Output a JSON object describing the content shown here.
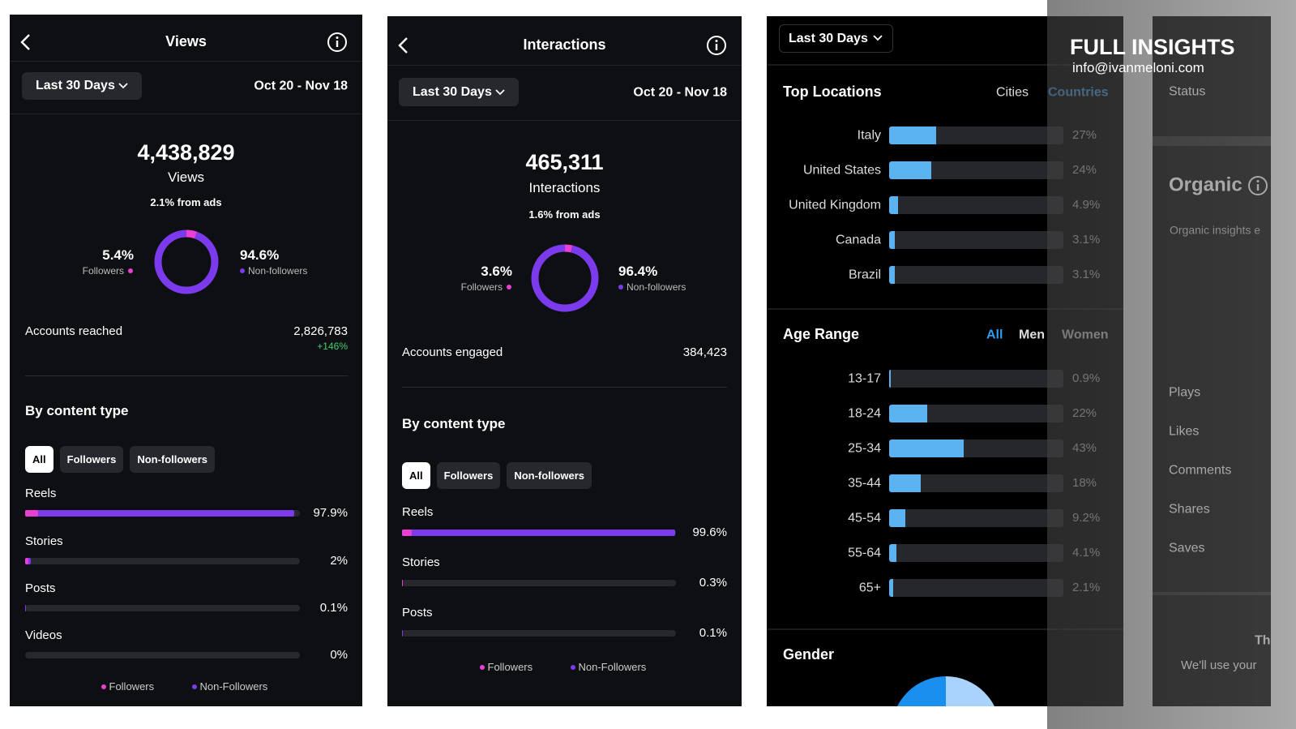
{
  "views": {
    "title": "Views",
    "period": "Last 30 Days",
    "dates": "Oct 20 - Nov 18",
    "total": "4,438,829",
    "total_label": "Views",
    "ads": "2.1% from ads",
    "followers": {
      "value": 5.4,
      "label": "5.4%",
      "name": "Followers"
    },
    "non_followers": {
      "value": 94.6,
      "label": "94.6%",
      "name": "Non-followers"
    },
    "metric": {
      "name": "Accounts reached",
      "value": "2,826,783",
      "change": "+146%"
    },
    "section": "By content type",
    "filters": [
      "All",
      "Followers",
      "Non-followers"
    ],
    "items": [
      {
        "name": "Reels",
        "followers": 4.7,
        "value": 97.9,
        "label": "97.9%"
      },
      {
        "name": "Stories",
        "followers": 1.2,
        "value": 2,
        "label": "2%"
      },
      {
        "name": "Posts",
        "followers": 0,
        "value": 0.1,
        "label": "0.1%"
      },
      {
        "name": "Videos",
        "followers": 0,
        "value": 0,
        "label": "0%"
      }
    ],
    "legend": [
      "Followers",
      "Non-Followers"
    ]
  },
  "interactions": {
    "title": "Interactions",
    "period": "Last 30 Days",
    "dates": "Oct 20 - Nov 18",
    "total": "465,311",
    "total_label": "Interactions",
    "ads": "1.6% from ads",
    "followers": {
      "value": 3.6,
      "label": "3.6%",
      "name": "Followers"
    },
    "non_followers": {
      "value": 96.4,
      "label": "96.4%",
      "name": "Non-followers"
    },
    "metric": {
      "name": "Accounts engaged",
      "value": "384,423"
    },
    "section": "By content type",
    "filters": [
      "All",
      "Followers",
      "Non-followers"
    ],
    "items": [
      {
        "name": "Reels",
        "followers": 3.5,
        "value": 99.6,
        "label": "99.6%"
      },
      {
        "name": "Stories",
        "followers": 0.1,
        "value": 0.3,
        "label": "0.3%"
      },
      {
        "name": "Posts",
        "followers": 0,
        "value": 0.1,
        "label": "0.1%"
      }
    ],
    "legend": [
      "Followers",
      "Non-Followers"
    ]
  },
  "audience": {
    "period": "Last 30 Days",
    "locations": {
      "title": "Top Locations",
      "tabs": [
        "Cities",
        "Countries"
      ],
      "items": [
        {
          "name": "Italy",
          "value": 27,
          "label": "27%"
        },
        {
          "name": "United States",
          "value": 24,
          "label": "24%"
        },
        {
          "name": "United Kingdom",
          "value": 4.9,
          "label": "4.9%"
        },
        {
          "name": "Canada",
          "value": 3.1,
          "label": "3.1%"
        },
        {
          "name": "Brazil",
          "value": 3.1,
          "label": "3.1%"
        }
      ]
    },
    "age": {
      "title": "Age Range",
      "tabs": [
        "All",
        "Men",
        "Women"
      ],
      "items": [
        {
          "name": "13-17",
          "value": 0.9,
          "label": "0.9%"
        },
        {
          "name": "18-24",
          "value": 22,
          "label": "22%"
        },
        {
          "name": "25-34",
          "value": 43,
          "label": "43%"
        },
        {
          "name": "35-44",
          "value": 18,
          "label": "18%"
        },
        {
          "name": "45-54",
          "value": 9.2,
          "label": "9.2%"
        },
        {
          "name": "55-64",
          "value": 4.1,
          "label": "4.1%"
        },
        {
          "name": "65+",
          "value": 2.1,
          "label": "2.1%"
        }
      ]
    },
    "gender": {
      "title": "Gender"
    }
  },
  "side": {
    "status": "Status",
    "organic": "Organic",
    "organic_note": "Organic insights e",
    "rows": [
      "Plays",
      "Likes",
      "Comments",
      "Shares",
      "Saves"
    ],
    "footer_title": "Th",
    "footer_text": "We'll use your"
  },
  "watermark": {
    "title": "FULL INSIGHTS",
    "email": "info@ivanmeloni.com"
  }
}
